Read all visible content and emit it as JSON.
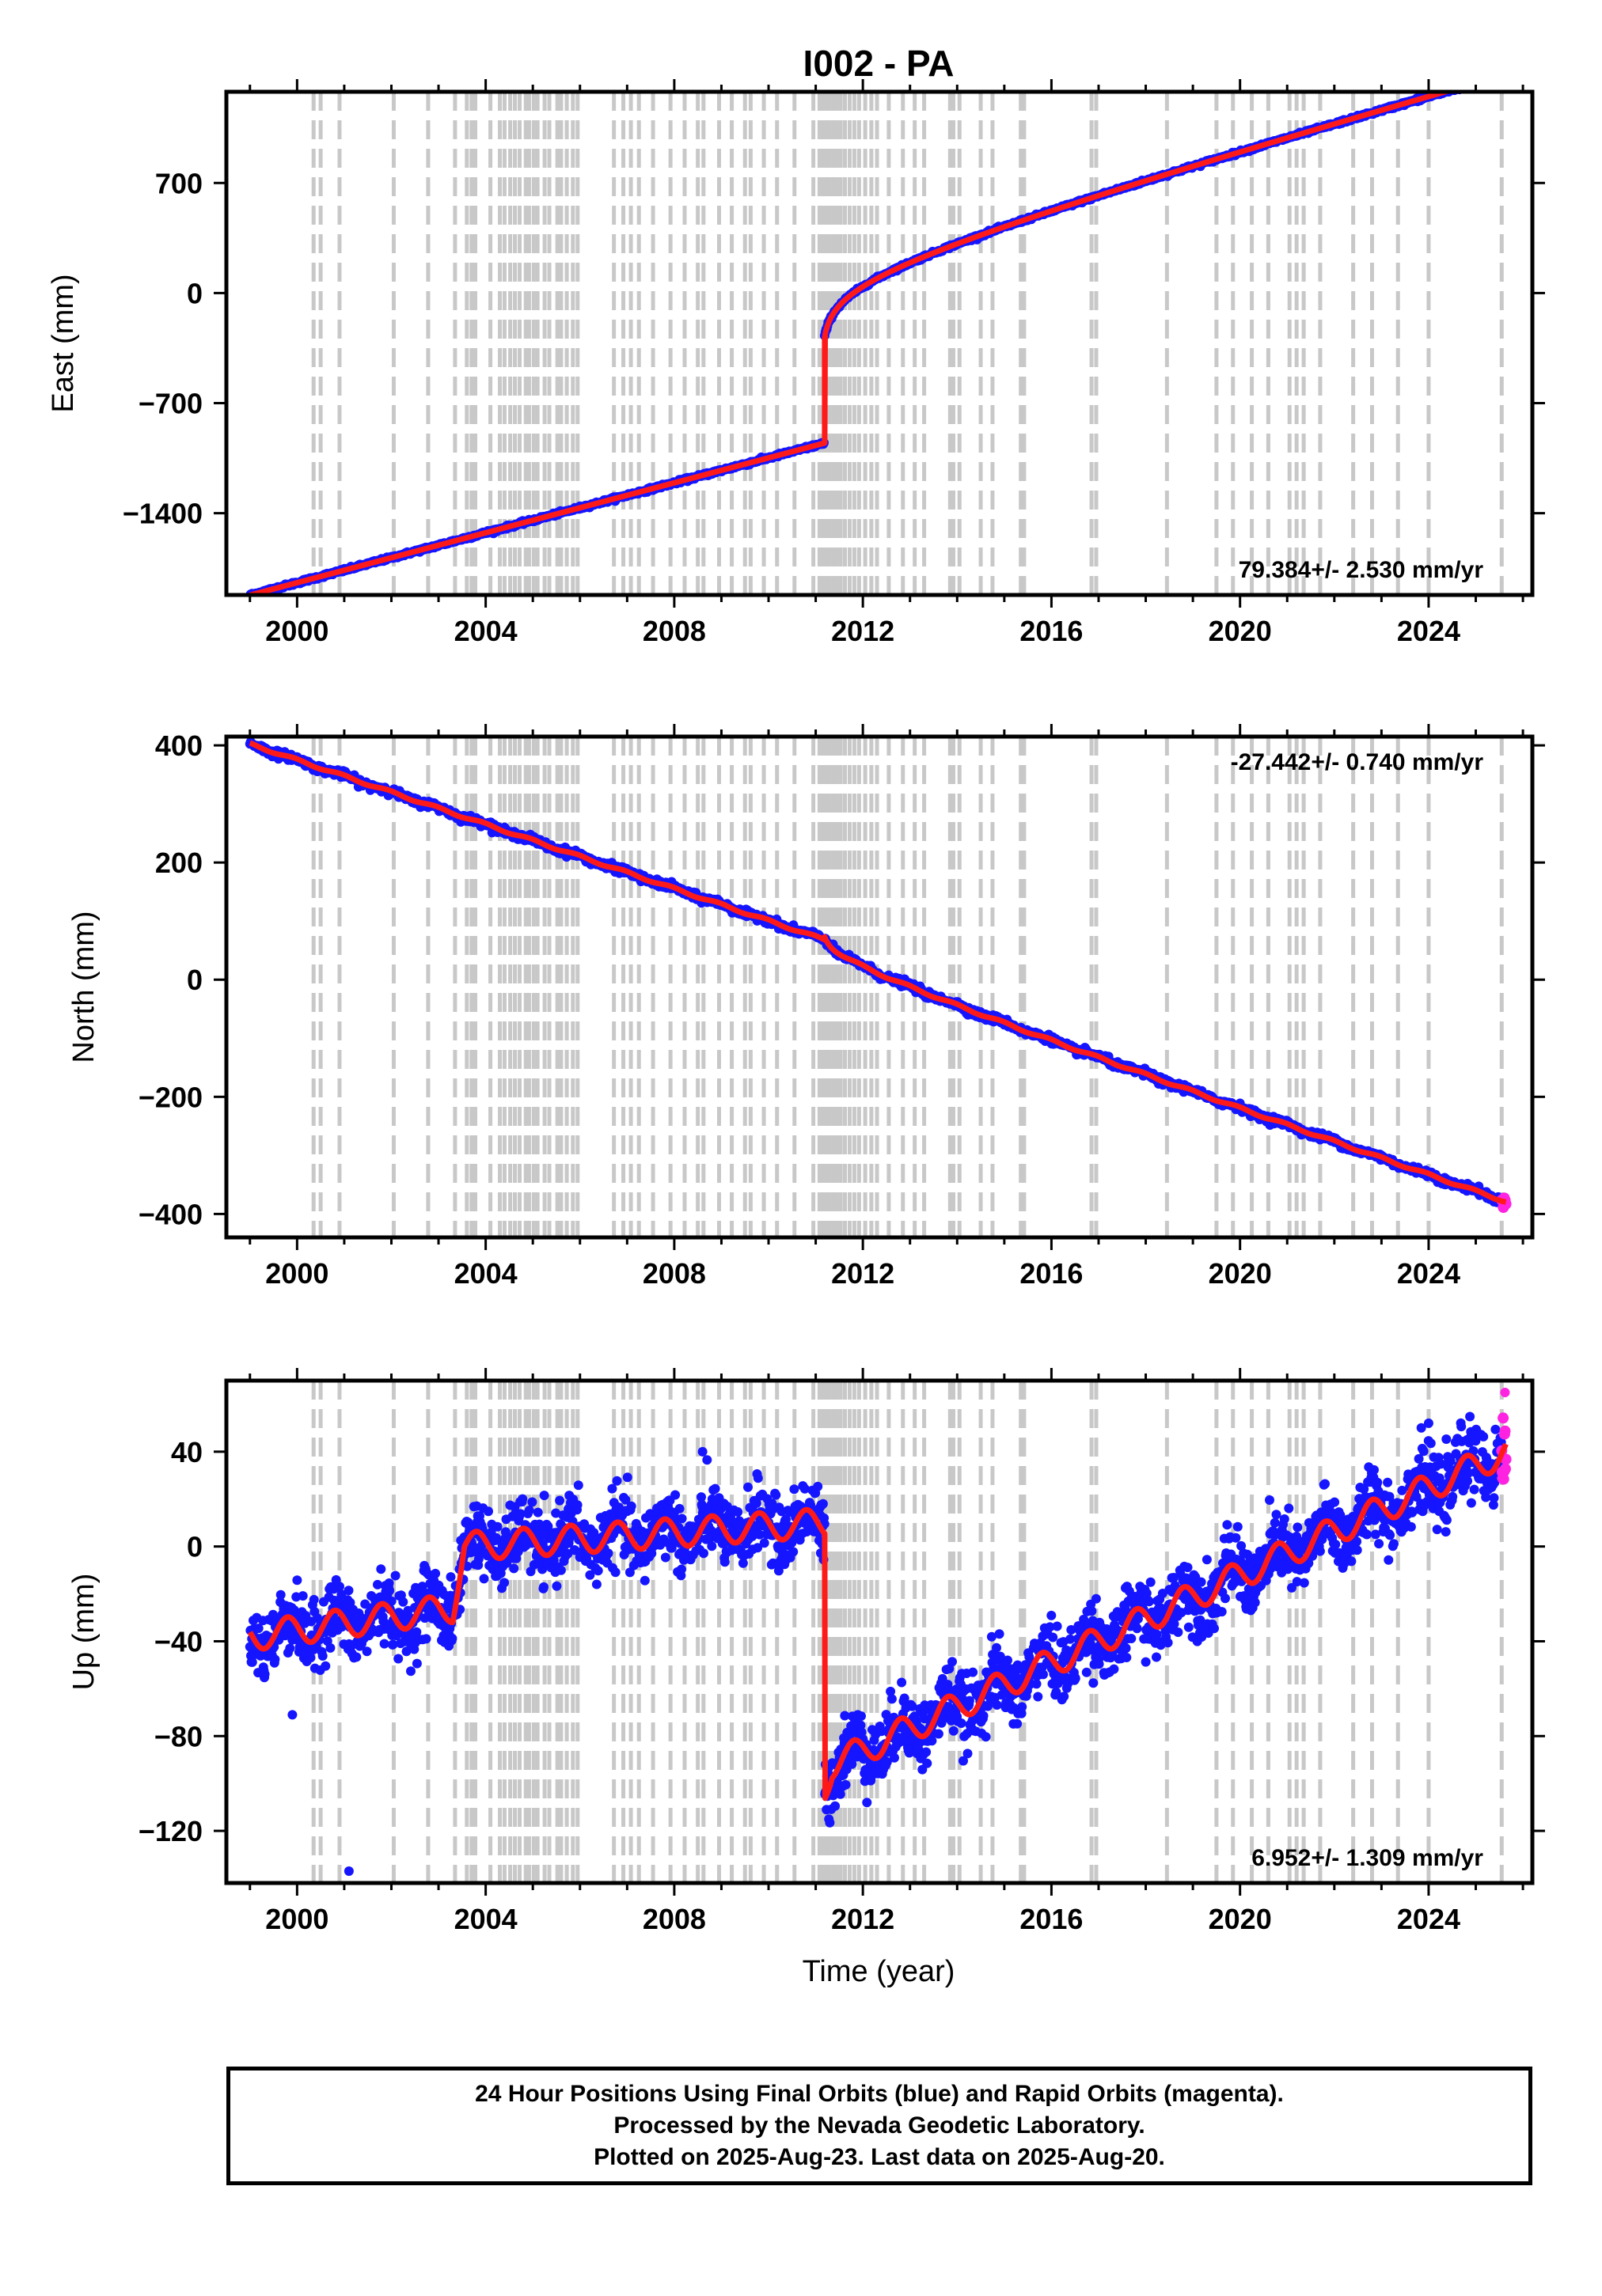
{
  "title": "I002 - PA",
  "time_label": "Time (year)",
  "footer": {
    "lines": [
      "24 Hour Positions Using Final Orbits (blue) and Rapid Orbits (magenta).",
      "Processed by the Nevada Geodetic Laboratory.",
      "Plotted on 2025-Aug-23. Last data on 2025-Aug-20."
    ]
  },
  "colors": {
    "final_orbits": "#1515ff",
    "rapid_orbits": "#ff22e0",
    "model_fit": "#ff1a1a",
    "event_markers": "#c8c8c8"
  },
  "x_ticks": [
    2000,
    2004,
    2008,
    2012,
    2016,
    2020,
    2024
  ],
  "xlim": [
    1998.5,
    2026.2
  ],
  "event_epochs": [
    2000.35,
    2000.5,
    2000.9,
    2002.05,
    2002.78,
    2003.35,
    2003.6,
    2003.7,
    2003.78,
    2004.1,
    2004.3,
    2004.4,
    2004.52,
    2004.62,
    2004.72,
    2004.85,
    2004.92,
    2005.02,
    2005.1,
    2005.25,
    2005.35,
    2005.52,
    2005.6,
    2005.72,
    2005.85,
    2005.95,
    2006.72,
    2006.92,
    2007.08,
    2007.25,
    2007.55,
    2007.92,
    2008.22,
    2008.5,
    2008.62,
    2008.95,
    2009.22,
    2009.5,
    2009.62,
    2009.9,
    2010.18,
    2010.55,
    2010.95,
    2011.08,
    2011.15,
    2011.22,
    2011.3,
    2011.38,
    2011.45,
    2011.53,
    2011.62,
    2011.72,
    2011.82,
    2011.92,
    2012.05,
    2012.18,
    2012.3,
    2012.55,
    2012.85,
    2013.1,
    2013.3,
    2013.85,
    2013.92,
    2014.05,
    2014.5,
    2014.75,
    2015.35,
    2015.42,
    2016.85,
    2016.95,
    2018.45,
    2019.5,
    2019.85,
    2020.25,
    2020.6,
    2021.05,
    2021.2,
    2021.35,
    2021.7,
    2022.4,
    2022.8,
    2023.35,
    2024.0,
    2025.55
  ],
  "chart_data": [
    {
      "type": "scatter",
      "component": "east",
      "ylabel": "East (mm)",
      "yticks": [
        -1400,
        -700,
        0,
        700
      ],
      "ylim": [
        -1920,
        1280
      ],
      "rate_label": "79.384+/- 2.530 mm/yr",
      "rate_position": "bottom-right",
      "grid": false,
      "model": {
        "linear_rate": 79.384,
        "value_at_2000": -1842,
        "earthquake_epoch": 2011.19,
        "coseismic_offset": 675,
        "postseismic_amplitude": 520,
        "postseismic_tau_years": 1.2,
        "seasonal_amplitude": 0,
        "seasonal_phase": 0,
        "noise": 5
      },
      "series": [
        {
          "name": "Final Orbits",
          "x_range": [
            1999.0,
            2025.55
          ],
          "samples": 1800,
          "color": "#1515ff"
        },
        {
          "name": "Rapid Orbits",
          "x_range": [
            2025.55,
            2025.64
          ],
          "samples": 6,
          "color": "#ff22e0"
        }
      ]
    },
    {
      "type": "scatter",
      "component": "north",
      "ylabel": "North (mm)",
      "yticks": [
        -400,
        -200,
        0,
        200,
        400
      ],
      "ylim": [
        -440,
        415
      ],
      "rate_label": "-27.442+/- 0.740 mm/yr",
      "rate_position": "top-right",
      "grid": false,
      "model": {
        "linear_rate": -27.442,
        "value_at_2000": 375,
        "earthquake_epoch": 2011.19,
        "coseismic_offset": 5,
        "postseismic_amplitude": -55,
        "postseismic_tau_years": 1.0,
        "seasonal_amplitude": 2,
        "seasonal_phase": 0.3,
        "noise": 3
      },
      "series": [
        {
          "name": "Final Orbits",
          "x_range": [
            1999.0,
            2025.55
          ],
          "samples": 1800,
          "color": "#1515ff"
        },
        {
          "name": "Rapid Orbits",
          "x_range": [
            2025.55,
            2025.64
          ],
          "samples": 6,
          "color": "#ff22e0"
        }
      ]
    },
    {
      "type": "scatter",
      "component": "up",
      "ylabel": "Up (mm)",
      "yticks": [
        -120,
        -80,
        -40,
        0,
        40
      ],
      "ylim": [
        -142,
        70
      ],
      "rate_label": "6.952+/- 1.309 mm/yr",
      "rate_position": "bottom-right",
      "grid": false,
      "segments": [
        {
          "x_start": 1999.0,
          "x_end": 2003.3,
          "value_start": -38,
          "value_end": -26
        },
        {
          "x_start": 2003.3,
          "x_end": 2003.55,
          "value_start": -26,
          "value_end": 0
        },
        {
          "x_start": 2003.55,
          "x_end": 2011.19,
          "value_start": 0,
          "value_end": 10
        },
        {
          "x_start": 2011.19,
          "x_end": 2011.35,
          "value_start": -102,
          "value_end": -92
        },
        {
          "x_start": 2011.35,
          "x_end": 2025.64,
          "value_start": -92,
          "value_end": 40
        }
      ],
      "seasonal_amplitude": 6,
      "seasonal_phase": 0.45,
      "noise": 7,
      "series": [
        {
          "name": "Final Orbits",
          "x_range": [
            1999.0,
            2025.55
          ],
          "samples": 2600,
          "color": "#1515ff"
        },
        {
          "name": "Rapid Orbits",
          "x_range": [
            2025.55,
            2025.64
          ],
          "samples": 10,
          "color": "#ff22e0"
        }
      ],
      "outliers": [
        {
          "x": 1999.9,
          "y": -71
        },
        {
          "x": 2001.1,
          "y": -137
        },
        {
          "x": 2008.6,
          "y": 40
        },
        {
          "x": 2011.2,
          "y": -104
        },
        {
          "x": 2024.0,
          "y": 52
        },
        {
          "x": 2025.62,
          "y": 65
        }
      ]
    }
  ]
}
